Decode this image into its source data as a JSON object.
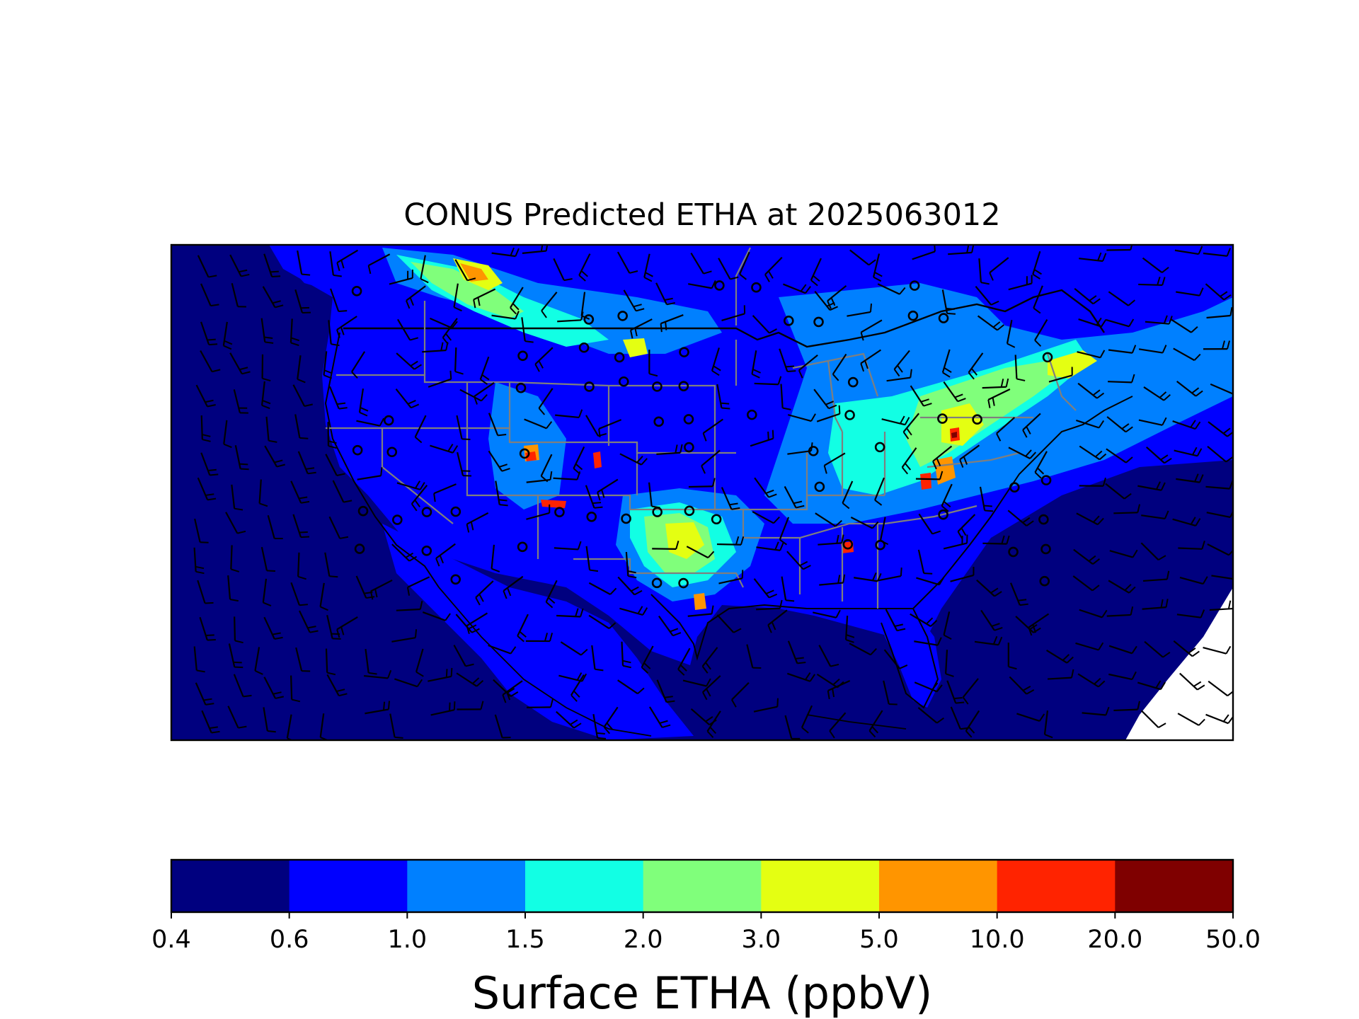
{
  "figure": {
    "title": "CONUS Predicted ETHA at 2025063012"
  },
  "colorbar": {
    "label": "Surface ETHA (ppbV)",
    "ticks": [
      "0.4",
      "0.6",
      "1.0",
      "1.5",
      "2.0",
      "3.0",
      "5.0",
      "10.0",
      "20.0",
      "50.0"
    ],
    "colors": [
      "#00007f",
      "#0000ff",
      "#0080ff",
      "#12ffe4",
      "#80ff7b",
      "#e4ff12",
      "#ff9500",
      "#ff2300",
      "#7f0000"
    ]
  },
  "map": {
    "region": "CONUS",
    "variable": "ETHA",
    "overlays": [
      "state-boundaries",
      "coastlines",
      "wind-barbs",
      "calm-wind-circles"
    ],
    "no_data_color": "#ffffff"
  }
}
